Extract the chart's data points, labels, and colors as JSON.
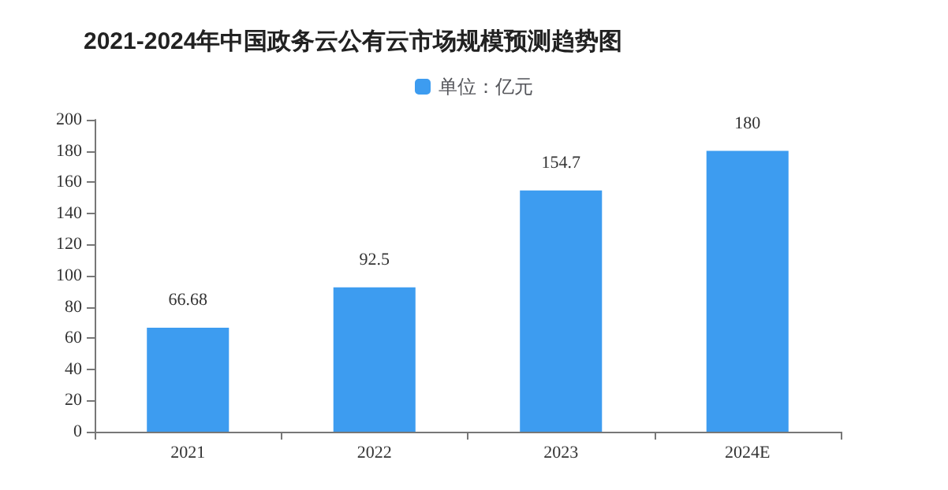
{
  "chart_data": {
    "type": "bar",
    "title": "2021-2024年中国政务云公有云市场规模预测趋势图",
    "categories": [
      "2021",
      "2022",
      "2023",
      "2024E"
    ],
    "series": [
      {
        "name": "单位：亿元",
        "color": "#3d9cf0",
        "values": [
          66.68,
          92.5,
          154.7,
          180
        ]
      }
    ],
    "ylim": [
      0,
      200
    ],
    "yticks": [
      0,
      20,
      40,
      60,
      80,
      100,
      120,
      140,
      160,
      180,
      200
    ],
    "grid": false,
    "legend": "top",
    "data_labels": true
  }
}
